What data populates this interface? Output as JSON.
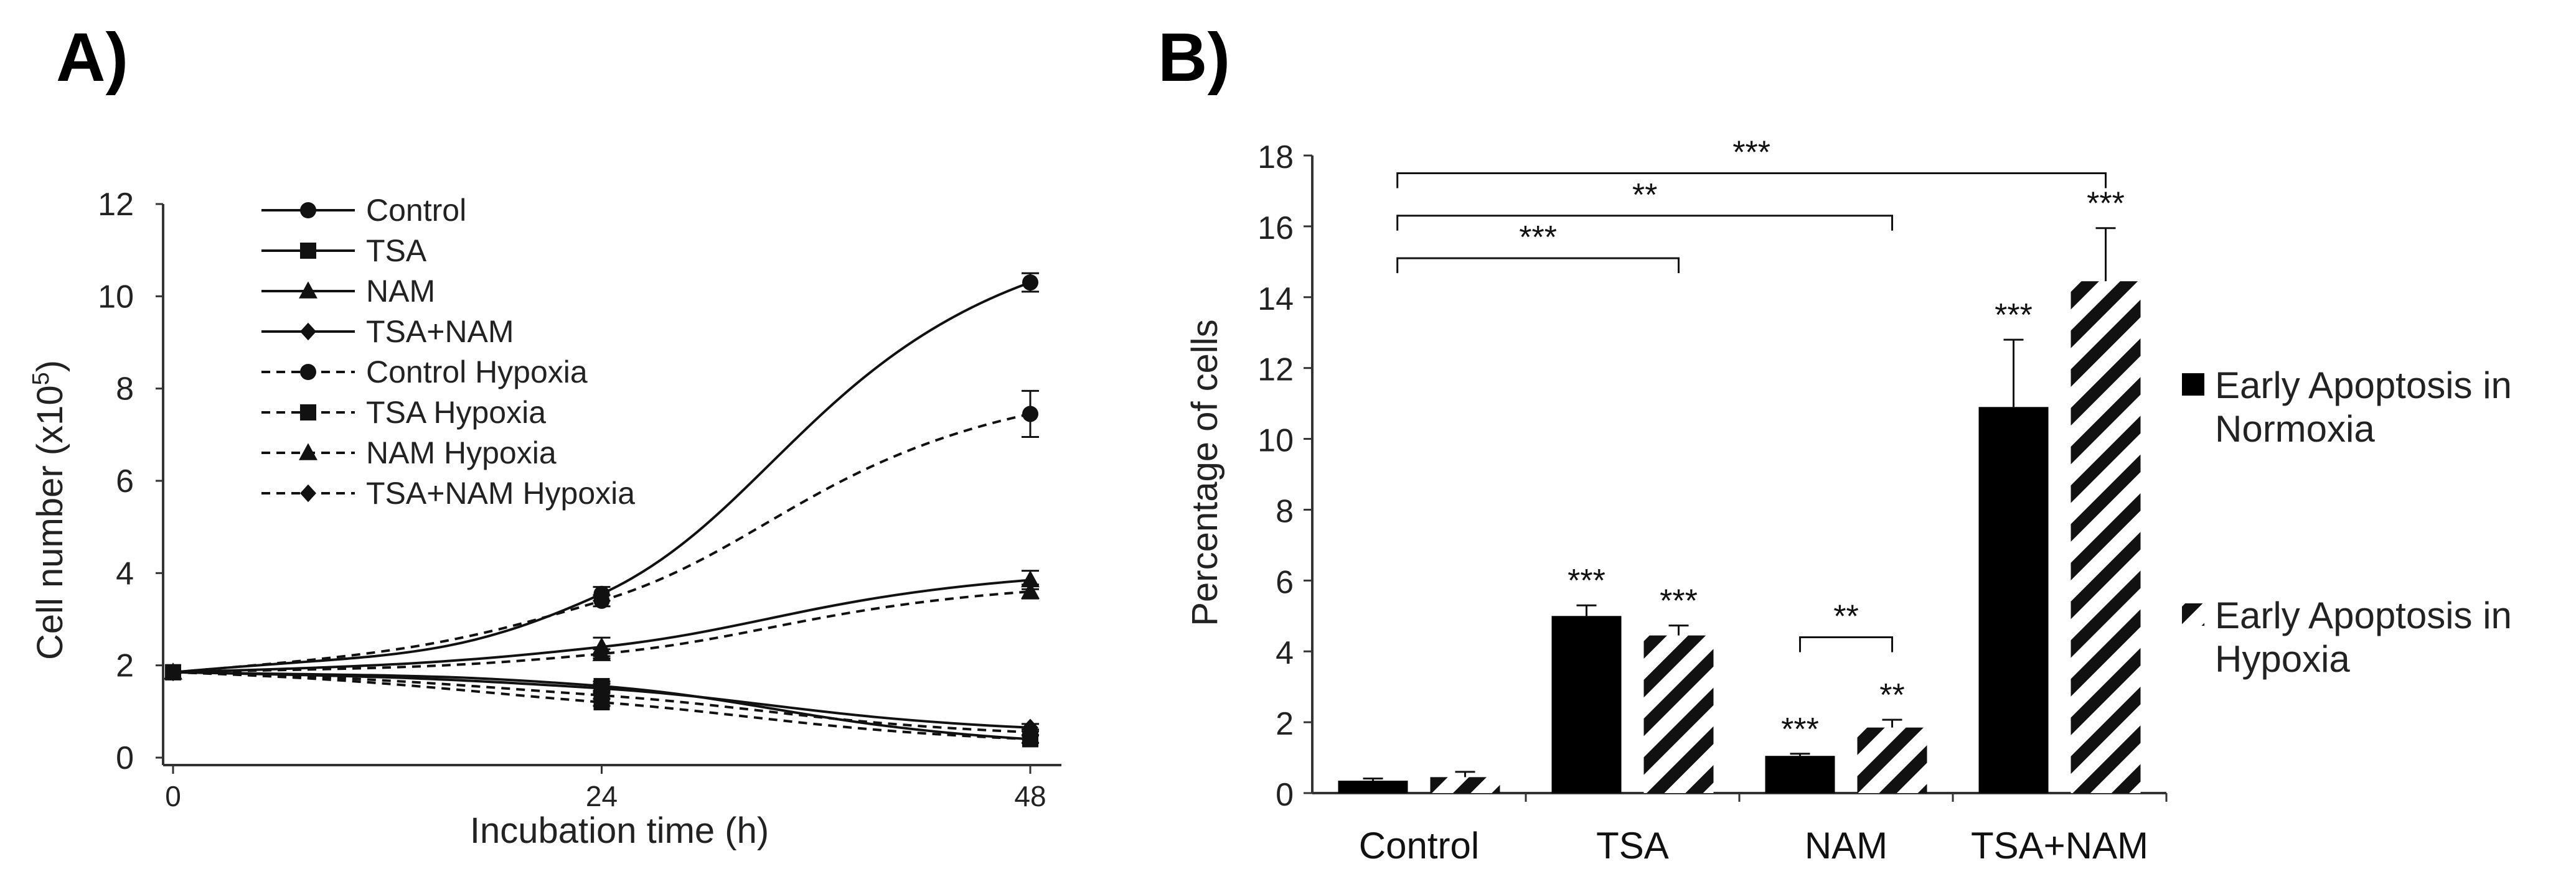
{
  "chart_data": [
    {
      "panel": "A)",
      "type": "line",
      "xlabel": "Incubation time (h)",
      "ylabel": "Cell number (x10",
      "ylabel_sup": "5",
      "ylabel_close": ")",
      "x": [
        0,
        24,
        48
      ],
      "x_ticks": [
        "0",
        "24",
        "48"
      ],
      "xlim": [
        0,
        48
      ],
      "ylim": [
        0,
        12
      ],
      "y_ticks": [
        "0",
        "2",
        "4",
        "6",
        "8",
        "10",
        "12"
      ],
      "legend_position": "top-left",
      "series": [
        {
          "name": "Control",
          "values": [
            1.85,
            3.55,
            10.3
          ],
          "err": [
            0,
            0.15,
            0.2
          ],
          "marker": "circle",
          "dash": false
        },
        {
          "name": "TSA",
          "values": [
            1.85,
            1.55,
            0.4
          ],
          "err": [
            0,
            0.1,
            0.08
          ],
          "marker": "square",
          "dash": false
        },
        {
          "name": "NAM",
          "values": [
            1.85,
            2.4,
            3.85
          ],
          "err": [
            0,
            0.2,
            0.2
          ],
          "marker": "triangle",
          "dash": false
        },
        {
          "name": "TSA+NAM",
          "values": [
            1.85,
            1.5,
            0.65
          ],
          "err": [
            0,
            0.1,
            0.08
          ],
          "marker": "diamond",
          "dash": false
        },
        {
          "name": "Control Hypoxia",
          "values": [
            1.85,
            3.4,
            7.45
          ],
          "err": [
            0,
            0.12,
            0.5
          ],
          "marker": "circle",
          "dash": true
        },
        {
          "name": "TSA Hypoxia",
          "values": [
            1.85,
            1.2,
            0.4
          ],
          "err": [
            0,
            0.08,
            0.08
          ],
          "marker": "square",
          "dash": true
        },
        {
          "name": "NAM Hypoxia",
          "values": [
            1.85,
            2.25,
            3.6
          ],
          "err": [
            0,
            0.1,
            0.15
          ],
          "marker": "triangle",
          "dash": true
        },
        {
          "name": "TSA+NAM Hypoxia",
          "values": [
            1.85,
            1.35,
            0.55
          ],
          "err": [
            0,
            0.08,
            0.06
          ],
          "marker": "diamond",
          "dash": true
        }
      ]
    },
    {
      "panel": "B)",
      "type": "bar",
      "ylabel": "Percentage of cells",
      "categories": [
        "Control",
        "TSA",
        "NAM",
        "TSA+NAM"
      ],
      "ylim": [
        0,
        18
      ],
      "y_ticks": [
        "0",
        "2",
        "4",
        "6",
        "8",
        "10",
        "12",
        "14",
        "16",
        "18"
      ],
      "legend_position": "right",
      "series": [
        {
          "name_lines": [
            "Early Apoptosis in",
            "Normoxia"
          ],
          "values": [
            0.35,
            5.0,
            1.05,
            10.9
          ],
          "err": [
            0.06,
            0.3,
            0.06,
            1.9
          ],
          "sig": [
            "",
            "***",
            "***",
            "***"
          ],
          "pattern": "solid"
        },
        {
          "name_lines": [
            "Early Apoptosis in",
            "Hypoxia"
          ],
          "values": [
            0.45,
            4.45,
            1.85,
            14.45
          ],
          "err": [
            0.15,
            0.28,
            0.22,
            1.5
          ],
          "sig": [
            "",
            "***",
            "**",
            "***"
          ],
          "pattern": "hatched"
        }
      ],
      "brackets": [
        {
          "from": 0,
          "to": 3,
          "y": 17.5,
          "label": "***"
        },
        {
          "from": 0,
          "to": 2,
          "y": 16.3,
          "label": "**"
        },
        {
          "from": 0,
          "to": 1,
          "y": 15.1,
          "label": "***"
        },
        {
          "from": 2,
          "to": 2,
          "y": 4.4,
          "label": "**",
          "within": true
        }
      ]
    }
  ],
  "colors": {
    "ink": "#111111",
    "axis": "#222222",
    "bar_solid": "#000000",
    "hatch_bg": "#ffffff"
  }
}
